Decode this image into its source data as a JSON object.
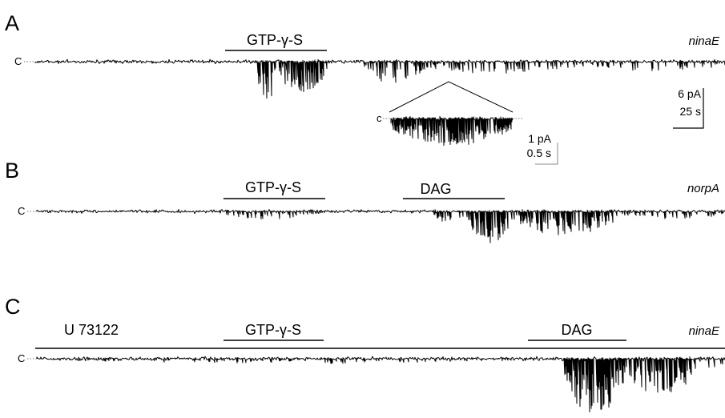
{
  "chart_data": {
    "type": "line",
    "description_kind": "electrophysiology current traces",
    "panels": [
      {
        "letter": "A",
        "genotype": "ninaE",
        "closed_label": "C",
        "bars": [
          {
            "label": "GTP-γ-S"
          }
        ],
        "scale_bar": {
          "current": "6 pA",
          "time": "25 s"
        },
        "inset": {
          "closed_label": "c",
          "scale_bar": {
            "current": "1 pA",
            "time": "0.5 s"
          }
        }
      },
      {
        "letter": "B",
        "genotype": "norpA",
        "closed_label": "C",
        "bars": [
          {
            "label": "GTP-γ-S"
          },
          {
            "label": "DAG"
          }
        ]
      },
      {
        "letter": "C",
        "genotype": "ninaE",
        "closed_label": "C",
        "bars": [
          {
            "label": "U 73122",
            "style": "long"
          },
          {
            "label": "GTP-γ-S"
          },
          {
            "label": "DAG"
          }
        ]
      }
    ]
  }
}
